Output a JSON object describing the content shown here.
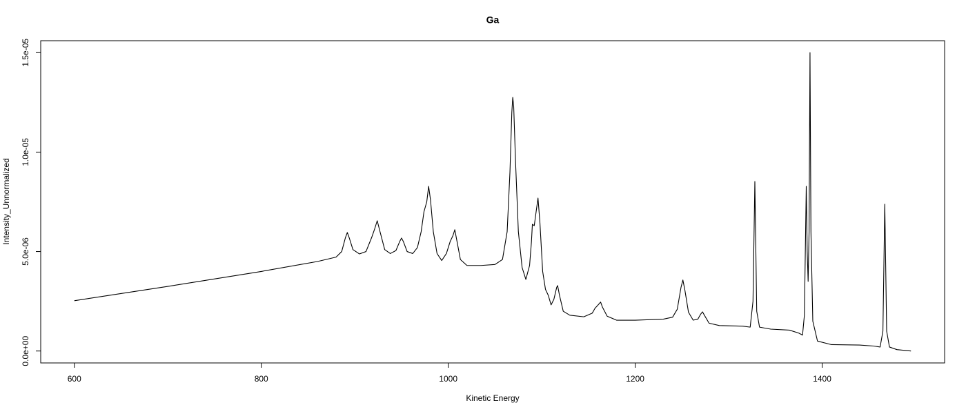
{
  "chart_data": {
    "type": "line",
    "title": "Ga",
    "x_label": "Kinetic Energy",
    "y_label": "Intensity_Unnormalized",
    "color": "#000000",
    "x": [
      600,
      700,
      800,
      860,
      880,
      886,
      890,
      892,
      894,
      898,
      905,
      912,
      918,
      921,
      924,
      927,
      932,
      938,
      944,
      948,
      950,
      952,
      956,
      962,
      967,
      971,
      974,
      977,
      979,
      981,
      984,
      988,
      993,
      998,
      1002,
      1005,
      1007,
      1009,
      1013,
      1020,
      1035,
      1050,
      1058,
      1063,
      1066,
      1068,
      1069,
      1070,
      1072,
      1075,
      1079,
      1083,
      1087,
      1089,
      1090,
      1092,
      1094,
      1096,
      1098,
      1101,
      1104,
      1107,
      1110,
      1113,
      1116,
      1117,
      1119,
      1123,
      1130,
      1145,
      1154,
      1157,
      1160,
      1163,
      1165,
      1170,
      1180,
      1200,
      1230,
      1240,
      1245,
      1249,
      1251,
      1253,
      1257,
      1262,
      1267,
      1270,
      1272,
      1274,
      1279,
      1290,
      1315,
      1323,
      1326,
      1328,
      1330,
      1333,
      1345,
      1365,
      1375,
      1379,
      1381,
      1383,
      1384,
      1385,
      1386,
      1387,
      1388,
      1390,
      1395,
      1410,
      1440,
      1455,
      1462,
      1465,
      1467,
      1469,
      1472,
      1480,
      1495
    ],
    "values": [
      2.53e-06,
      3.25e-06,
      4e-06,
      4.5e-06,
      4.72e-06,
      5e-06,
      5.7e-06,
      5.96e-06,
      5.7e-06,
      5.1e-06,
      4.88e-06,
      5e-06,
      5.7e-06,
      6.1e-06,
      6.55e-06,
      6e-06,
      5.1e-06,
      4.9e-06,
      5.05e-06,
      5.5e-06,
      5.68e-06,
      5.5e-06,
      5e-06,
      4.9e-06,
      5.2e-06,
      6e-06,
      7e-06,
      7.5e-06,
      8.28e-06,
      7.6e-06,
      6e-06,
      4.9e-06,
      4.55e-06,
      4.9e-06,
      5.5e-06,
      5.8e-06,
      6.1e-06,
      5.6e-06,
      4.6e-06,
      4.3e-06,
      4.3e-06,
      4.35e-06,
      4.6e-06,
      6e-06,
      9e-06,
      1.2e-05,
      1.275e-05,
      1.23e-05,
      9.5e-06,
      6e-06,
      4.2e-06,
      3.6e-06,
      4.3e-06,
      5.5e-06,
      6.37e-06,
      6.3e-06,
      7e-06,
      7.69e-06,
      6.5e-06,
      4e-06,
      3.1e-06,
      2.8e-06,
      2.32e-06,
      2.6e-06,
      3.2e-06,
      3.29e-06,
      2.8e-06,
      2e-06,
      1.8e-06,
      1.72e-06,
      1.9e-06,
      2.15e-06,
      2.3e-06,
      2.46e-06,
      2.2e-06,
      1.75e-06,
      1.55e-06,
      1.55e-06,
      1.6e-06,
      1.7e-06,
      2.1e-06,
      3.2e-06,
      3.57e-06,
      3.1e-06,
      1.95e-06,
      1.55e-06,
      1.6e-06,
      1.85e-06,
      1.97e-06,
      1.8e-06,
      1.4e-06,
      1.28e-06,
      1.25e-06,
      1.2e-06,
      2.5e-06,
      8.52e-06,
      2e-06,
      1.2e-06,
      1.1e-06,
      1.05e-06,
      9e-07,
      8e-07,
      1.8e-06,
      8.28e-06,
      5e-06,
      3.5e-06,
      6e-06,
      1.5e-05,
      6e-06,
      1.5e-06,
      5e-07,
      3.2e-07,
      3e-07,
      2.5e-07,
      2e-07,
      1e-06,
      7.38e-06,
      1e-06,
      2e-07,
      7e-08,
      0
    ],
    "xlim": [
      564,
      1531
    ],
    "ylim": [
      -6e-07,
      1.56e-05
    ],
    "xticks": [
      600,
      800,
      1000,
      1200,
      1400
    ],
    "yticks": [
      {
        "value": 0,
        "label": "0.0e+00"
      },
      {
        "value": 5e-06,
        "label": "5.0e-06"
      },
      {
        "value": 1e-05,
        "label": "1.0e-05"
      },
      {
        "value": 1.5e-05,
        "label": "1.5e-05"
      }
    ]
  }
}
